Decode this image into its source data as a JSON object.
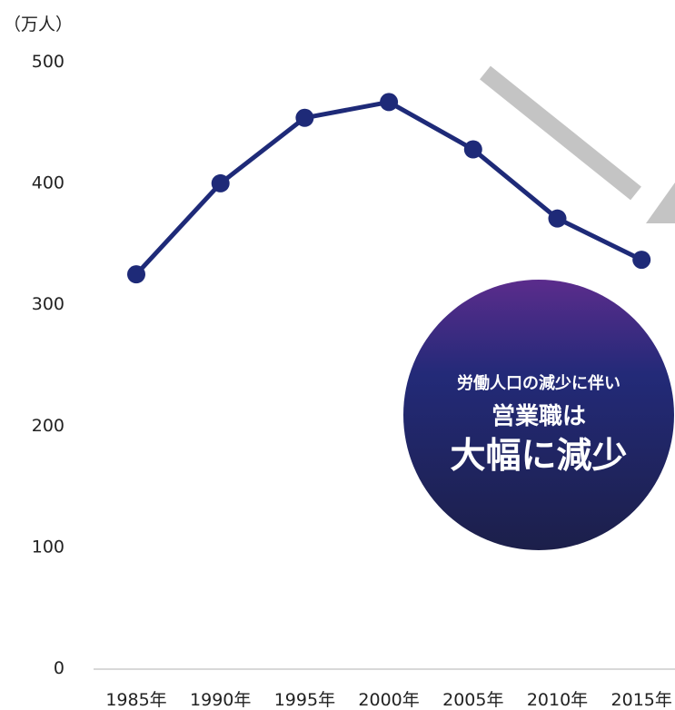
{
  "chart_data": {
    "type": "line",
    "unit_label": "（万人）",
    "categories": [
      "1985年",
      "1990年",
      "1995年",
      "2000年",
      "2005年",
      "2010年",
      "2015年"
    ],
    "series": [
      {
        "values": [
          324,
          399,
          453,
          466,
          427,
          370,
          336
        ]
      }
    ],
    "ylim": [
      0,
      500
    ],
    "yticks": [
      "0",
      "100",
      "200",
      "300",
      "400",
      "500"
    ],
    "grid": false,
    "colors": {
      "line": "#1e2a78",
      "arrow": "#c4c4c4",
      "circle_top": "#5b2c8c",
      "circle_mid": "#232a78",
      "circle_bottom": "#1c1f4a"
    },
    "annotation": {
      "line1": "労働人口の減少に伴い",
      "line2": "営業職は",
      "line3": "大幅に減少"
    }
  }
}
